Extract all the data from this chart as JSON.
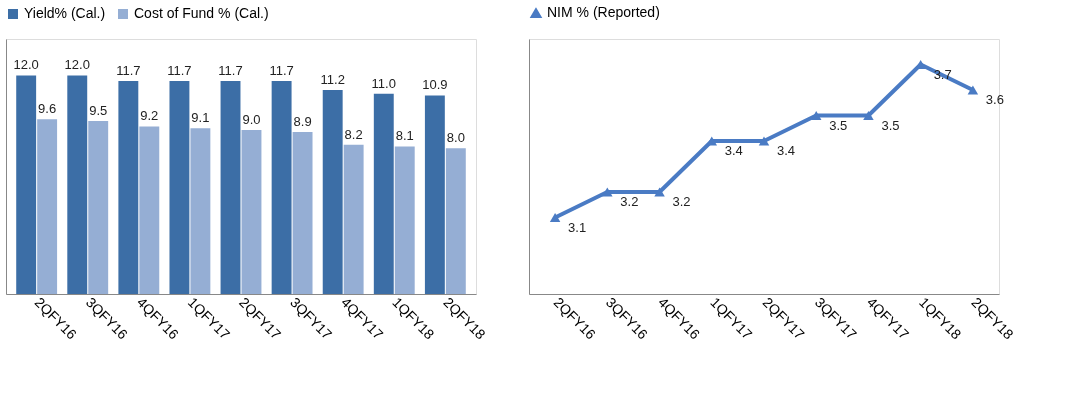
{
  "chart_data": [
    {
      "type": "bar",
      "categories": [
        "2QFY16",
        "3QFY16",
        "4QFY16",
        "1QFY17",
        "2QFY17",
        "3QFY17",
        "4QFY17",
        "1QFY18",
        "2QFY18"
      ],
      "series": [
        {
          "name": "Yield% (Cal.)",
          "color": "#3c6ea6",
          "values": [
            12.0,
            12.0,
            11.7,
            11.7,
            11.7,
            11.7,
            11.2,
            11.0,
            10.9
          ],
          "value_labels": [
            "12.0",
            "12.0",
            "11.7",
            "11.7",
            "11.7",
            "11.7",
            "11.2",
            "11.0",
            "10.9"
          ]
        },
        {
          "name": "Cost of Fund % (Cal.)",
          "color": "#95aed4",
          "values": [
            9.6,
            9.5,
            9.2,
            9.1,
            9.0,
            8.9,
            8.2,
            8.1,
            8.0
          ],
          "value_labels": [
            "9.6",
            "9.5",
            "9.2",
            "9.1",
            "9.0",
            "8.9",
            "8.2",
            "8.1",
            "8.0"
          ]
        }
      ],
      "ylim": [
        0,
        14
      ],
      "legend": "top",
      "grid": false,
      "tick_labels": "x"
    },
    {
      "type": "line",
      "categories": [
        "2QFY16",
        "3QFY16",
        "4QFY16",
        "1QFY17",
        "2QFY17",
        "3QFY17",
        "4QFY17",
        "1QFY18",
        "2QFY18"
      ],
      "series": [
        {
          "name": "NIM % (Reported)",
          "color": "#4a7bc4",
          "values": [
            3.1,
            3.2,
            3.2,
            3.4,
            3.4,
            3.5,
            3.5,
            3.7,
            3.6
          ]
        }
      ],
      "ylim": [
        2.8,
        3.8
      ],
      "data_labels": true,
      "marker": "triangle",
      "line_style": "solid",
      "legend": "top",
      "grid": false,
      "tick_labels": "x"
    }
  ]
}
